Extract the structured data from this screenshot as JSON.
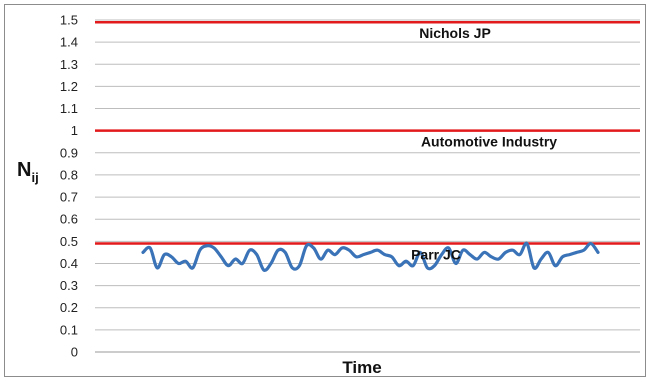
{
  "chart_data": {
    "type": "line",
    "title": "",
    "xlabel": "Time",
    "ylabel": {
      "base": "N",
      "subscript": "ij"
    },
    "ylim": [
      0,
      1.5
    ],
    "ytick_step": 0.1,
    "yticks": [
      "0",
      "0.1",
      "0.2",
      "0.3",
      "0.4",
      "0.5",
      "0.6",
      "0.7",
      "0.8",
      "0.9",
      "1",
      "1.1",
      "1.2",
      "1.3",
      "1.4",
      "1.5"
    ],
    "grid": true,
    "reference_lines": [
      {
        "label": "Nichols  JP",
        "value": 1.49,
        "color": "#e31a1c"
      },
      {
        "label": "Automotive Industry",
        "value": 1.0,
        "color": "#e31a1c"
      },
      {
        "label": "Parr JC",
        "value": 0.49,
        "color": "#e31a1c"
      }
    ],
    "series": [
      {
        "color": "#3a73b7",
        "values": [
          0.45,
          0.47,
          0.38,
          0.44,
          0.43,
          0.4,
          0.41,
          0.38,
          0.46,
          0.48,
          0.47,
          0.43,
          0.39,
          0.42,
          0.4,
          0.46,
          0.44,
          0.37,
          0.4,
          0.46,
          0.45,
          0.38,
          0.39,
          0.48,
          0.47,
          0.42,
          0.46,
          0.44,
          0.47,
          0.46,
          0.43,
          0.44,
          0.45,
          0.46,
          0.44,
          0.43,
          0.39,
          0.41,
          0.39,
          0.45,
          0.38,
          0.39,
          0.44,
          0.47,
          0.4,
          0.46,
          0.44,
          0.42,
          0.45,
          0.43,
          0.42,
          0.45,
          0.46,
          0.44,
          0.49,
          0.38,
          0.42,
          0.45,
          0.39,
          0.43,
          0.44,
          0.45,
          0.46,
          0.49,
          0.45
        ]
      }
    ]
  }
}
